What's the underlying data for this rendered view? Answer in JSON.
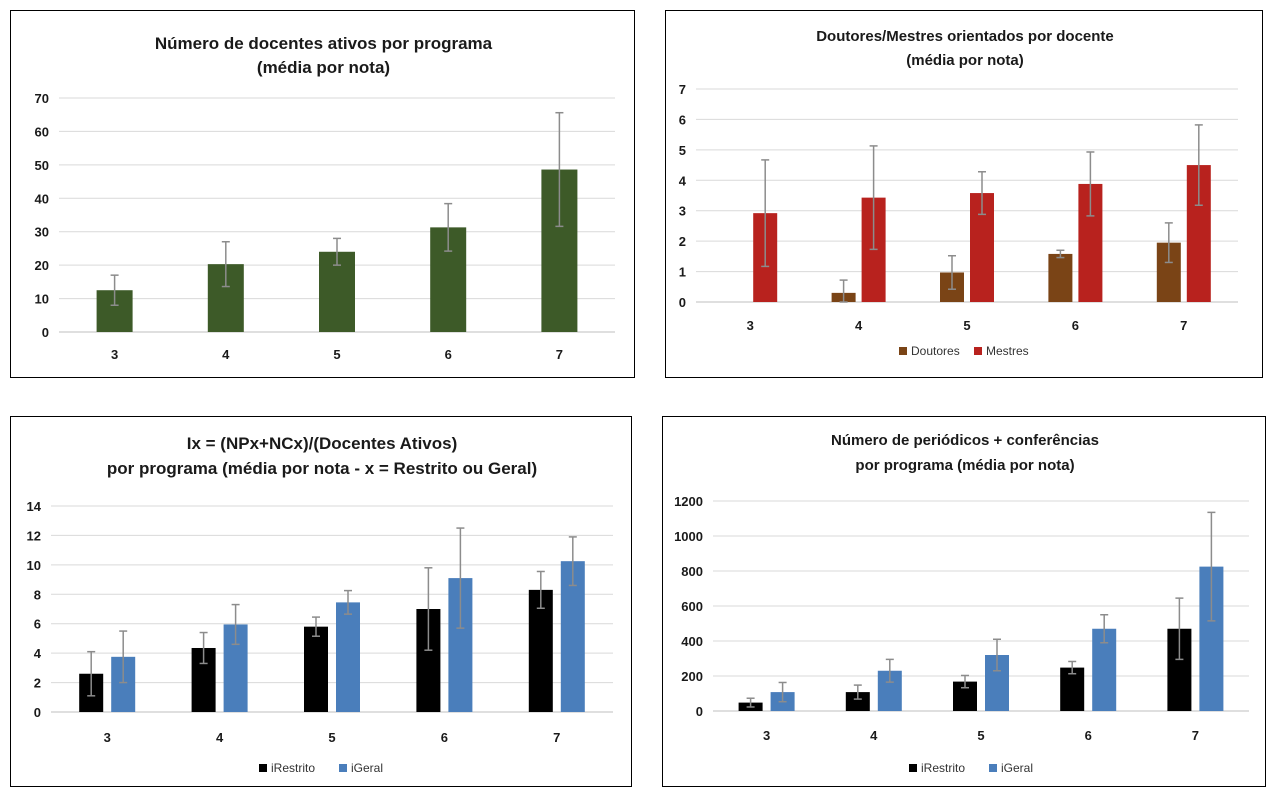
{
  "chart_data": [
    {
      "type": "bar",
      "title": [
        "Número de docentes ativos por programa",
        "(média por nota)"
      ],
      "categories": [
        "3",
        "4",
        "5",
        "6",
        "7"
      ],
      "ylim": [
        0,
        70
      ],
      "ytick_step": 10,
      "grid": true,
      "legend": "none",
      "series": [
        {
          "values": [
            12.5,
            20.3,
            24,
            31.3,
            48.6
          ],
          "error": [
            4.5,
            6.7,
            4,
            7.1,
            17
          ],
          "color": "#3d5a28"
        }
      ]
    },
    {
      "type": "bar",
      "title": [
        "Doutores/Mestres orientados por docente",
        "(média por nota)"
      ],
      "categories": [
        "3",
        "4",
        "5",
        "6",
        "7"
      ],
      "ylim": [
        0,
        7
      ],
      "ytick_step": 1,
      "grid": true,
      "legend": "bottom",
      "series": [
        {
          "name": "Doutores",
          "values": [
            0,
            0.3,
            0.97,
            1.58,
            1.95
          ],
          "error": [
            0,
            0.42,
            0.55,
            0.12,
            0.65
          ],
          "color": "#7a4416"
        },
        {
          "name": "Mestres",
          "values": [
            2.92,
            3.43,
            3.58,
            3.88,
            4.5
          ],
          "error": [
            1.75,
            1.7,
            0.7,
            1.05,
            1.32
          ],
          "color": "#b8221e"
        }
      ]
    },
    {
      "type": "bar",
      "title": [
        "Ix = (NPx+NCx)/(Docentes Ativos)",
        "por programa (média por nota - x = Restrito ou Geral)"
      ],
      "categories": [
        "3",
        "4",
        "5",
        "6",
        "7"
      ],
      "ylim": [
        0,
        14
      ],
      "ytick_step": 2,
      "grid": true,
      "legend": "bottom",
      "series": [
        {
          "name": "iRestrito",
          "values": [
            2.6,
            4.35,
            5.8,
            7.0,
            8.3
          ],
          "error": [
            1.5,
            1.05,
            0.65,
            2.8,
            1.25
          ],
          "color": "#000000"
        },
        {
          "name": "iGeral",
          "values": [
            3.75,
            5.95,
            7.45,
            9.1,
            10.25
          ],
          "error": [
            1.75,
            1.35,
            0.8,
            3.4,
            1.65
          ],
          "color": "#4a7ebb"
        }
      ]
    },
    {
      "type": "bar",
      "title": [
        "Número de periódicos + conferências",
        "por programa (média por nota)"
      ],
      "categories": [
        "3",
        "4",
        "5",
        "6",
        "7"
      ],
      "ylim": [
        0,
        1200
      ],
      "ytick_step": 200,
      "grid": true,
      "legend": "bottom",
      "series": [
        {
          "name": "iRestrito",
          "values": [
            48,
            108,
            168,
            248,
            470
          ],
          "error": [
            25,
            40,
            35,
            35,
            175
          ],
          "color": "#000000"
        },
        {
          "name": "iGeral",
          "values": [
            108,
            230,
            320,
            470,
            825
          ],
          "error": [
            55,
            65,
            90,
            80,
            310
          ],
          "color": "#4a7ebb"
        }
      ]
    }
  ]
}
